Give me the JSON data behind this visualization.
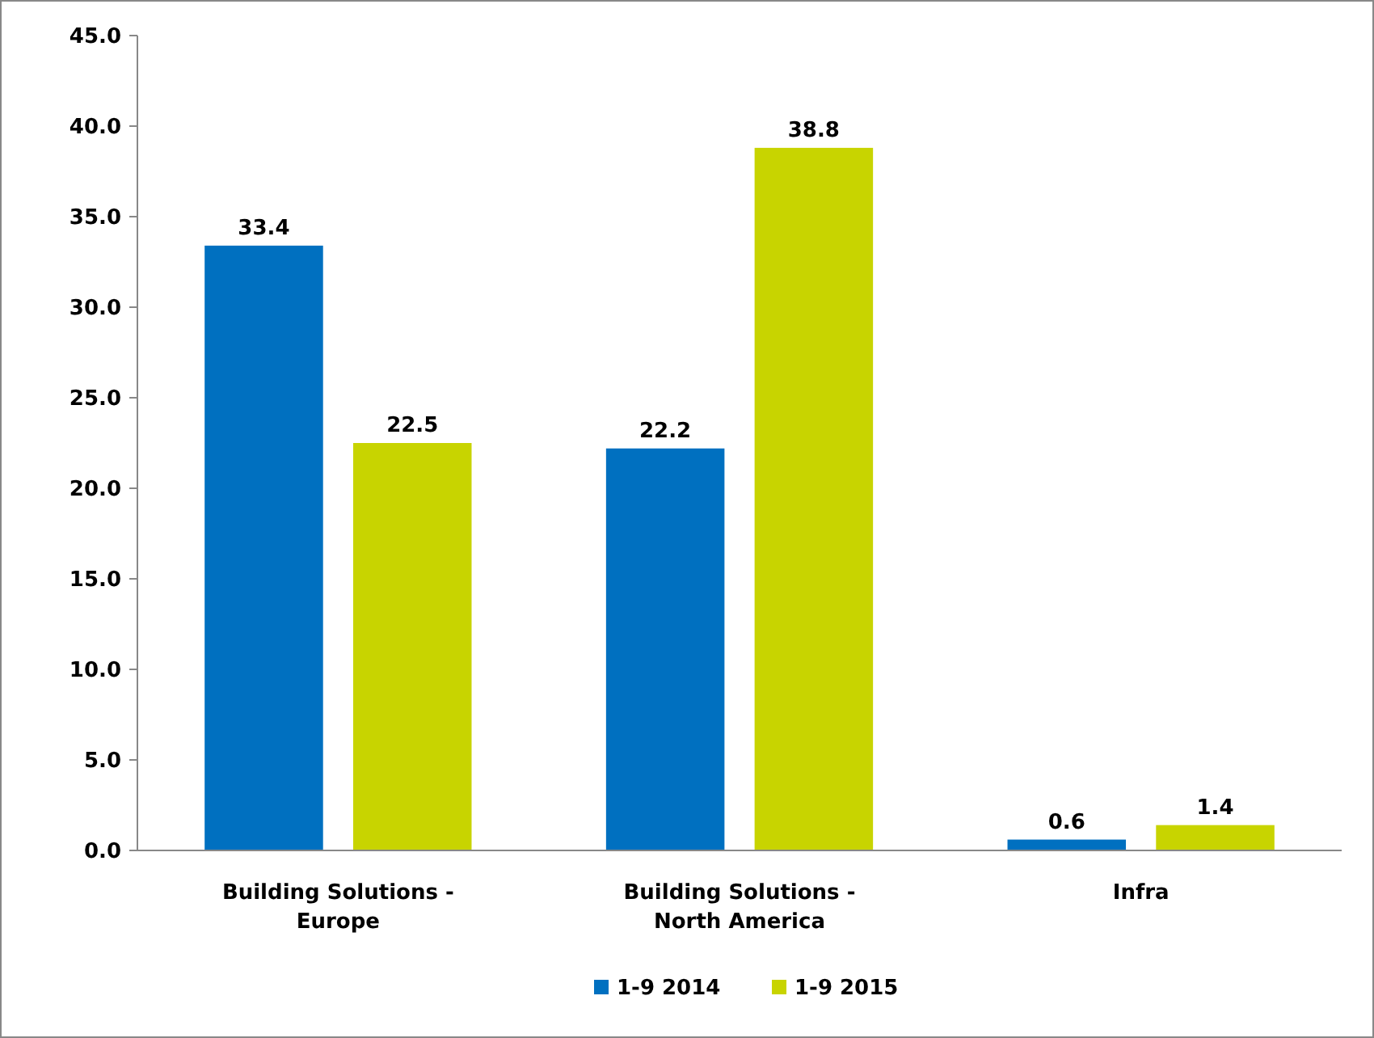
{
  "chart_data": {
    "type": "bar",
    "categories": [
      "Building Solutions - Europe",
      "Building Solutions - North America",
      "Infra"
    ],
    "series": [
      {
        "name": "1-9 2014",
        "color": "#0070c0",
        "values": [
          33.4,
          22.2,
          0.6
        ]
      },
      {
        "name": "1-9 2015",
        "color": "#c8d400",
        "values": [
          22.5,
          38.8,
          1.4
        ]
      }
    ],
    "ylim": [
      0,
      45
    ],
    "yticks": [
      {
        "value": 0,
        "label": "0.0"
      },
      {
        "value": 5,
        "label": "5.0"
      },
      {
        "value": 10,
        "label": "10.0"
      },
      {
        "value": 15,
        "label": "15.0"
      },
      {
        "value": 20,
        "label": "20.0"
      },
      {
        "value": 25,
        "label": "25.0"
      },
      {
        "value": 30,
        "label": "30.0"
      },
      {
        "value": 35,
        "label": "35.0"
      },
      {
        "value": 40,
        "label": "40.0"
      },
      {
        "value": 45,
        "label": "45.0"
      }
    ],
    "data_labels": true,
    "grid": false,
    "legend": "bottom"
  }
}
